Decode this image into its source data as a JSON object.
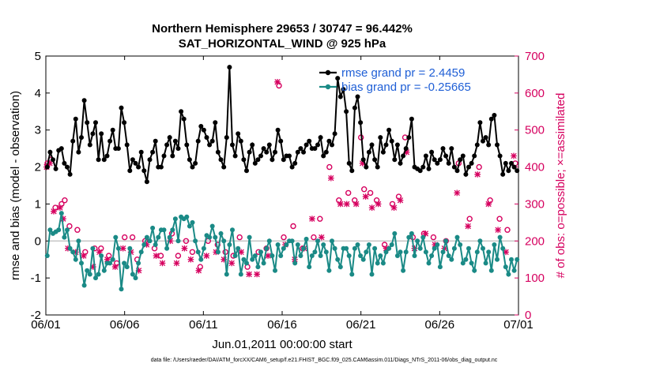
{
  "chart_data": {
    "type": "line",
    "title": "Northern Hemisphere 29653 / 30747 = 96.442%",
    "subtitle": "SAT_HORIZONTAL_WIND @ 925 hPa",
    "xlabel": "Jun.01,2011 00:00:00 start",
    "ylabel": "rmse and bias (model - observation)",
    "ylabel_right": "# of obs: o=possible; ×=assimilated",
    "xlim": [
      0,
      30
    ],
    "ylim": [
      -2,
      5
    ],
    "ylim_right": [
      0,
      700
    ],
    "xticks": [
      0,
      5,
      10,
      15,
      20,
      25,
      30
    ],
    "xtick_labels": [
      "06/01",
      "06/06",
      "06/11",
      "06/16",
      "06/21",
      "06/26",
      "07/01"
    ],
    "yticks": [
      -2,
      -1,
      0,
      1,
      2,
      3,
      4,
      5
    ],
    "yticks_right": [
      0,
      100,
      200,
      300,
      400,
      500,
      600,
      700
    ],
    "grid": false,
    "legend_placement": "top-right",
    "zero_line": 0,
    "series": [
      {
        "name": "rmse grand pr = 2.4459",
        "color": "#000000",
        "axis": "left",
        "marker": "star",
        "values": [
          2.0,
          2.4,
          2.2,
          1.95,
          2.45,
          2.5,
          2.1,
          2.0,
          1.8,
          2.7,
          3.3,
          2.4,
          2.8,
          3.8,
          3.2,
          2.6,
          2.9,
          3.2,
          2.2,
          2.9,
          2.2,
          2.3,
          2.7,
          3.0,
          2.5,
          2.5,
          3.6,
          3.2,
          2.6,
          1.9,
          2.2,
          2.1,
          2.0,
          2.4,
          1.9,
          1.6,
          2.2,
          2.4,
          2.7,
          2.0,
          2.0,
          2.3,
          2.6,
          2.8,
          2.3,
          2.7,
          2.5,
          3.5,
          3.3,
          2.6,
          2.2,
          2.0,
          2.1,
          2.7,
          3.1,
          3.0,
          2.8,
          2.6,
          2.7,
          3.2,
          2.4,
          2.2,
          2.0,
          2.8,
          4.7,
          2.6,
          2.3,
          2.9,
          2.7,
          2.2,
          1.9,
          2.4,
          2.6,
          2.1,
          2.2,
          2.3,
          2.5,
          2.4,
          2.6,
          2.2,
          2.4,
          3.0,
          2.7,
          2.2,
          2.3,
          2.3,
          2.0,
          2.1,
          2.4,
          2.5,
          2.4,
          2.6,
          2.7,
          2.5,
          2.5,
          2.6,
          2.8,
          2.3,
          2.4,
          2.7,
          2.6,
          2.9,
          4.4,
          3.9,
          4.1,
          3.5,
          2.1,
          1.9,
          3.6,
          3.9,
          3.2,
          2.2,
          2.0,
          2.4,
          2.6,
          2.2,
          2.0,
          2.8,
          2.4,
          2.6,
          3.0,
          2.7,
          2.2,
          2.6,
          2.1,
          2.3,
          2.5,
          2.8,
          3.3,
          2.0,
          1.95,
          1.9,
          2.0,
          2.3,
          1.95,
          2.4,
          2.2,
          2.1,
          2.2,
          2.5,
          2.3,
          2.1,
          2.5,
          2.0,
          1.9,
          2.2,
          2.3,
          1.8,
          2.0,
          2.1,
          2.3,
          2.6,
          3.2,
          2.7,
          2.8,
          2.6,
          3.3,
          3.4,
          2.6,
          2.3,
          1.8,
          2.1,
          1.9,
          2.1,
          2.0,
          1.9
        ]
      },
      {
        "name": "bias grand pr = -0.25665",
        "color": "#1a8a86",
        "axis": "left",
        "marker": "circle",
        "values": [
          -0.4,
          0.3,
          0.2,
          0.25,
          0.3,
          0.75,
          0.1,
          0.3,
          -0.2,
          -0.3,
          -0.5,
          0.0,
          -0.6,
          -1.2,
          -0.8,
          -0.9,
          -0.2,
          -1.0,
          -0.9,
          -0.4,
          -0.8,
          -0.6,
          -0.6,
          -0.5,
          0.1,
          -0.2,
          -1.3,
          -0.6,
          -0.7,
          -0.2,
          -0.9,
          -1.0,
          -0.6,
          -0.3,
          -0.1,
          0.1,
          0.0,
          0.35,
          -0.1,
          0.1,
          0.3,
          0.3,
          -0.2,
          0.1,
          0.3,
          0.6,
          0.0,
          0.65,
          0.6,
          0.65,
          0.4,
          0.5,
          0.0,
          -0.3,
          -0.5,
          -0.2,
          0.15,
          0.1,
          0.4,
          0.1,
          -0.3,
          0.2,
          0.0,
          -0.9,
          -0.1,
          0.3,
          -0.4,
          -0.2,
          -0.9,
          -0.5,
          -0.6,
          0.1,
          -0.5,
          -0.4,
          -0.7,
          -0.3,
          -0.6,
          -0.2,
          0.0,
          -0.4,
          -0.8,
          -0.1,
          -0.4,
          -0.2,
          -0.1,
          0.0,
          0.0,
          -0.6,
          -0.1,
          -0.4,
          -0.2,
          0.05,
          -0.7,
          -0.4,
          -0.3,
          0.0,
          -0.4,
          -0.1,
          -0.3,
          -0.8,
          0.0,
          -0.2,
          -0.5,
          -0.7,
          -0.2,
          -0.2,
          -0.4,
          -0.9,
          -0.2,
          -0.1,
          -0.4,
          -0.5,
          -0.3,
          -0.1,
          -0.9,
          -0.2,
          -0.6,
          -0.4,
          -0.6,
          -0.3,
          -0.2,
          -0.1,
          0.2,
          -0.4,
          -0.3,
          -0.8,
          -0.3,
          0.1,
          0.2,
          -0.4,
          0.0,
          -0.2,
          0.1,
          -0.3,
          -0.6,
          -0.4,
          -0.2,
          -0.1,
          -0.7,
          -0.3,
          0.0,
          -0.4,
          -0.5,
          -0.2,
          0.1,
          -0.1,
          -0.6,
          -0.5,
          -0.2,
          -0.6,
          -0.8,
          -0.3,
          0.0,
          -0.2,
          -0.6,
          -0.3,
          -0.8,
          -0.1,
          -0.5,
          0.1,
          -0.2,
          -0.7,
          -0.9,
          -0.5,
          -0.8,
          -0.5
        ]
      },
      {
        "name": "possible",
        "color": "#d6005f",
        "axis": "right",
        "marker": "o",
        "x": [
          0.1,
          0.3,
          0.6,
          1.0,
          1.2,
          1.5,
          2.0,
          2.5,
          3.1,
          3.5,
          4.0,
          4.5,
          5.0,
          5.5,
          5.8,
          6.3,
          6.9,
          7.3,
          8.0,
          8.4,
          8.9,
          9.3,
          9.8,
          10.3,
          10.9,
          11.4,
          11.9,
          12.3,
          12.8,
          13.5,
          14.0,
          14.8,
          15.1,
          15.7,
          16.3,
          17.0,
          17.4,
          18.0,
          18.6,
          19.2,
          19.6,
          20.0,
          20.2,
          20.6,
          21.0,
          21.5,
          22.0,
          22.4,
          22.8,
          23.3,
          24.0,
          24.6,
          25.4,
          26.2,
          26.9,
          27.5,
          28.2,
          28.8,
          29.3,
          29.8
        ],
        "values": [
          410,
          420,
          290,
          300,
          310,
          240,
          230,
          170,
          180,
          180,
          160,
          140,
          210,
          210,
          150,
          200,
          180,
          160,
          220,
          160,
          200,
          170,
          130,
          200,
          190,
          170,
          160,
          210,
          130,
          170,
          180,
          620,
          210,
          240,
          180,
          210,
          260,
          400,
          310,
          330,
          310,
          480,
          340,
          330,
          310,
          190,
          300,
          320,
          480,
          210,
          220,
          210,
          200,
          410,
          260,
          400,
          310,
          260,
          230,
          410
        ]
      },
      {
        "name": "assimilated",
        "color": "#d6005f",
        "axis": "right",
        "marker": "x",
        "x": [
          0.05,
          0.25,
          0.5,
          0.9,
          1.1,
          1.4,
          1.9,
          2.4,
          3.0,
          3.4,
          3.9,
          4.4,
          4.9,
          5.4,
          5.9,
          6.4,
          7.0,
          7.4,
          7.9,
          8.3,
          8.8,
          9.2,
          9.7,
          10.2,
          10.8,
          11.3,
          11.8,
          12.4,
          12.9,
          13.4,
          14.1,
          14.7,
          15.2,
          15.8,
          16.4,
          16.9,
          17.5,
          18.1,
          18.7,
          19.1,
          19.7,
          20.1,
          20.3,
          20.7,
          21.1,
          21.6,
          22.1,
          22.5,
          22.9,
          23.4,
          24.1,
          24.7,
          25.3,
          26.1,
          26.8,
          27.4,
          28.1,
          28.7,
          29.2,
          29.7
        ],
        "values": [
          400,
          410,
          280,
          290,
          260,
          180,
          170,
          160,
          130,
          170,
          150,
          130,
          180,
          170,
          120,
          190,
          160,
          140,
          200,
          140,
          180,
          150,
          120,
          160,
          170,
          150,
          140,
          170,
          110,
          110,
          160,
          630,
          190,
          150,
          180,
          260,
          210,
          370,
          300,
          300,
          300,
          410,
          320,
          290,
          300,
          180,
          290,
          310,
          440,
          180,
          220,
          190,
          180,
          330,
          240,
          380,
          300,
          230,
          170,
          430
        ]
      }
    ],
    "footer": "data file: /Users/raeder/DAI/ATM_forcXX/CAM6_setup/f.e21.FHIST_BGC.f09_025.CAM6assim.011/Diags_NTrS_2011-06/obs_diag_output.nc"
  }
}
